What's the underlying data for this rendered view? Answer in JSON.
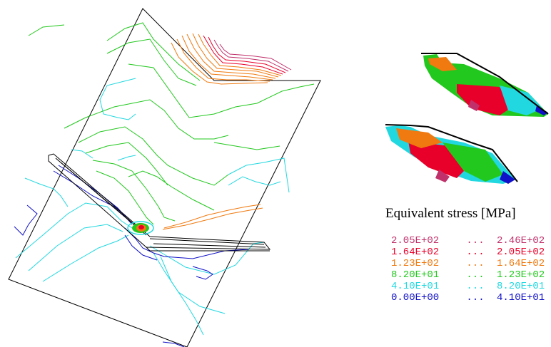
{
  "legend": {
    "title": "Equivalent stress [MPa]",
    "dots": "...",
    "rows": [
      {
        "lo": "2.05E+02",
        "hi": "2.46E+02",
        "color": "#c0306a"
      },
      {
        "lo": "1.64E+02",
        "hi": "2.05E+02",
        "color": "#e8002a"
      },
      {
        "lo": "1.23E+02",
        "hi": "1.64E+02",
        "color": "#f07a10"
      },
      {
        "lo": "8.20E+01",
        "hi": "1.23E+02",
        "color": "#22c81e"
      },
      {
        "lo": "4.10E+01",
        "hi": "8.20E+01",
        "color": "#22d8e0"
      },
      {
        "lo": "0.00E+00",
        "hi": "4.10E+01",
        "color": "#1010c8"
      }
    ]
  }
}
